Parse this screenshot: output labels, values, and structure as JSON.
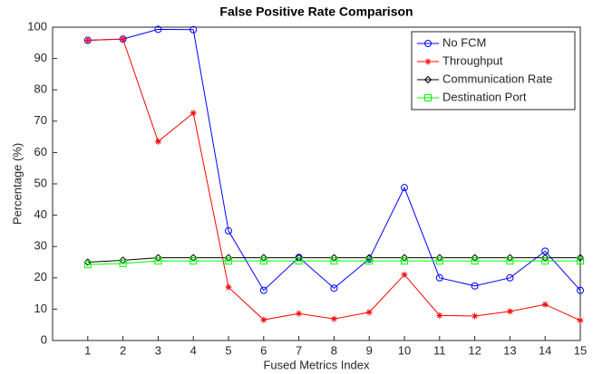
{
  "chart_data": {
    "type": "line",
    "title": "False Positive Rate Comparison",
    "x_label": "Fused Metrics Index",
    "y_label": "Percentage (%)",
    "x": [
      1,
      2,
      3,
      4,
      5,
      6,
      7,
      8,
      9,
      10,
      11,
      12,
      13,
      14,
      15
    ],
    "xlim": [
      0,
      15
    ],
    "xticks": [
      1,
      2,
      3,
      4,
      5,
      6,
      7,
      8,
      9,
      10,
      11,
      12,
      13,
      14,
      15
    ],
    "ylim": [
      0,
      100
    ],
    "yticks": [
      0,
      10,
      20,
      30,
      40,
      50,
      60,
      70,
      80,
      90,
      100
    ],
    "legend": "northeast",
    "grid": false,
    "series": [
      {
        "name": "No FCM",
        "color": "#0000ff",
        "marker": "circle",
        "values": [
          95.8,
          96.2,
          99.3,
          99.2,
          35,
          16,
          26.5,
          16.7,
          26,
          48.8,
          20,
          17.4,
          20,
          28.5,
          16
        ]
      },
      {
        "name": "Throughput",
        "color": "#ff0000",
        "marker": "star",
        "values": [
          95.8,
          96.2,
          63.5,
          72.6,
          17,
          6.6,
          8.6,
          6.9,
          9,
          21,
          8,
          7.8,
          9.3,
          11.5,
          6.4
        ]
      },
      {
        "name": "Communication Rate",
        "color": "#000000",
        "marker": "diamond",
        "values": [
          25,
          25.6,
          26.4,
          26.4,
          26.4,
          26.4,
          26.4,
          26.4,
          26.4,
          26.4,
          26.4,
          26.4,
          26.4,
          26.4,
          26.4
        ]
      },
      {
        "name": "Destination Port",
        "color": "#00ff00",
        "marker": "square",
        "values": [
          24.2,
          24.6,
          25.4,
          25.4,
          25.4,
          25.4,
          25.4,
          25.4,
          25.4,
          25.4,
          25.4,
          25.4,
          25.4,
          25.4,
          25.4
        ]
      }
    ]
  }
}
